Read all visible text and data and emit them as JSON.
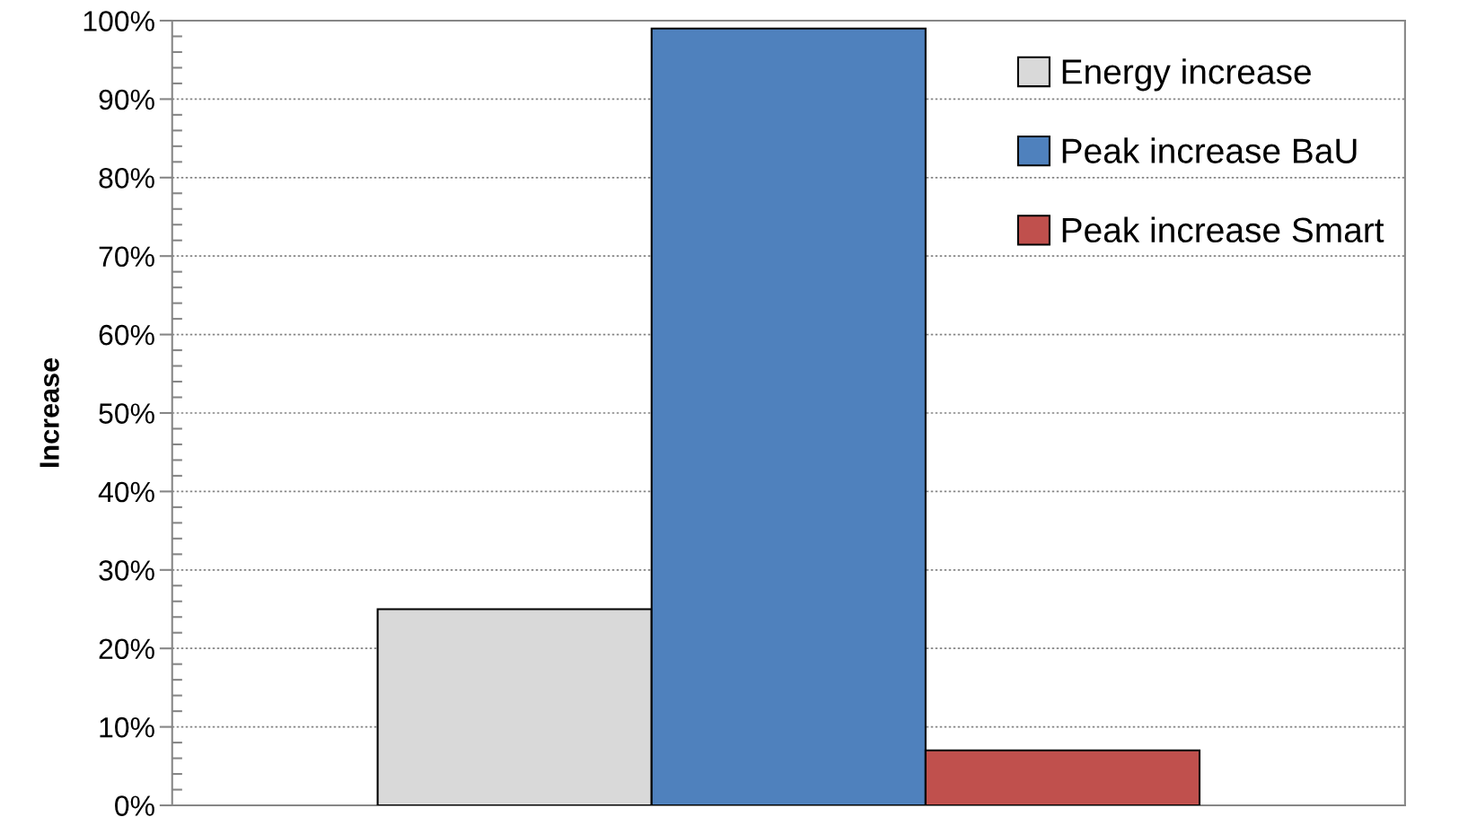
{
  "chart_data": {
    "type": "bar",
    "ylabel": "Increase",
    "categories": [
      null
    ],
    "series": [
      {
        "name": "Energy increase",
        "color": "#d9d9d9",
        "values": [
          25
        ]
      },
      {
        "name": "Peak increase BaU",
        "color": "#4f81bd",
        "values": [
          99
        ]
      },
      {
        "name": "Peak increase Smart",
        "color": "#c0504d",
        "values": [
          7
        ]
      }
    ],
    "ylim": [
      0,
      100
    ],
    "yticks": [
      {
        "value": 0,
        "label": "0%"
      },
      {
        "value": 10,
        "label": "10%"
      },
      {
        "value": 20,
        "label": "20%"
      },
      {
        "value": 30,
        "label": "30%"
      },
      {
        "value": 40,
        "label": "40%"
      },
      {
        "value": 50,
        "label": "50%"
      },
      {
        "value": 60,
        "label": "60%"
      },
      {
        "value": 70,
        "label": "70%"
      },
      {
        "value": 80,
        "label": "80%"
      },
      {
        "value": 90,
        "label": "90%"
      },
      {
        "value": 100,
        "label": "100%"
      }
    ],
    "grid": "y",
    "legend": "top right",
    "tick_labels": "y"
  }
}
